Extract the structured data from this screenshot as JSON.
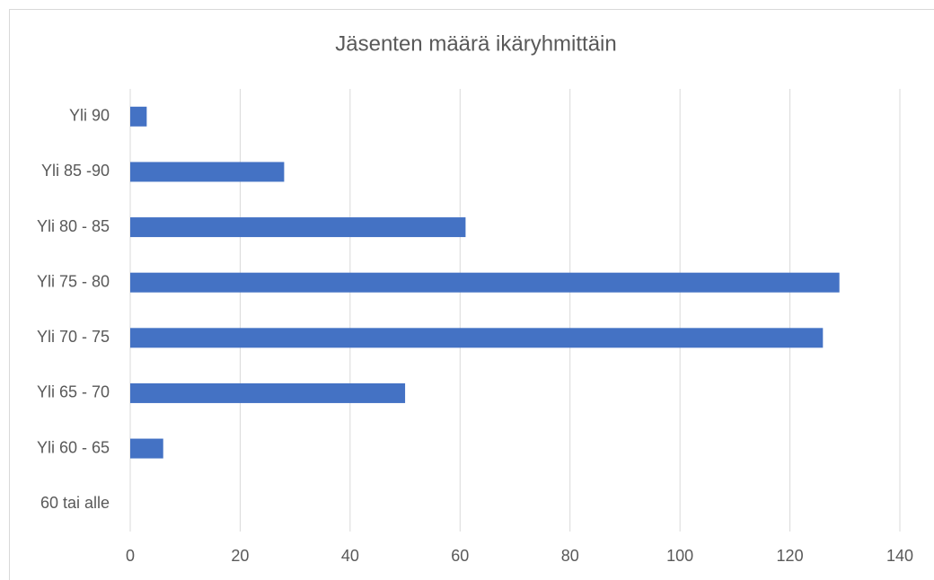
{
  "chart_data": {
    "type": "hbar",
    "title": "Jäsenten määrä ikäryhmittäin",
    "categories": [
      "Yli 90",
      "Yli 85 -90",
      "Yli 80 - 85",
      "Yli 75 - 80",
      "Yli 70 - 75",
      "Yli 65 - 70",
      "Yli 60 - 65",
      "60 tai alle"
    ],
    "values": [
      3,
      28,
      61,
      129,
      126,
      50,
      6,
      0
    ],
    "color": "#4472c4",
    "xlim": [
      0,
      140
    ],
    "xticks": [
      0,
      20,
      40,
      60,
      80,
      100,
      120,
      140
    ],
    "grid": true
  }
}
